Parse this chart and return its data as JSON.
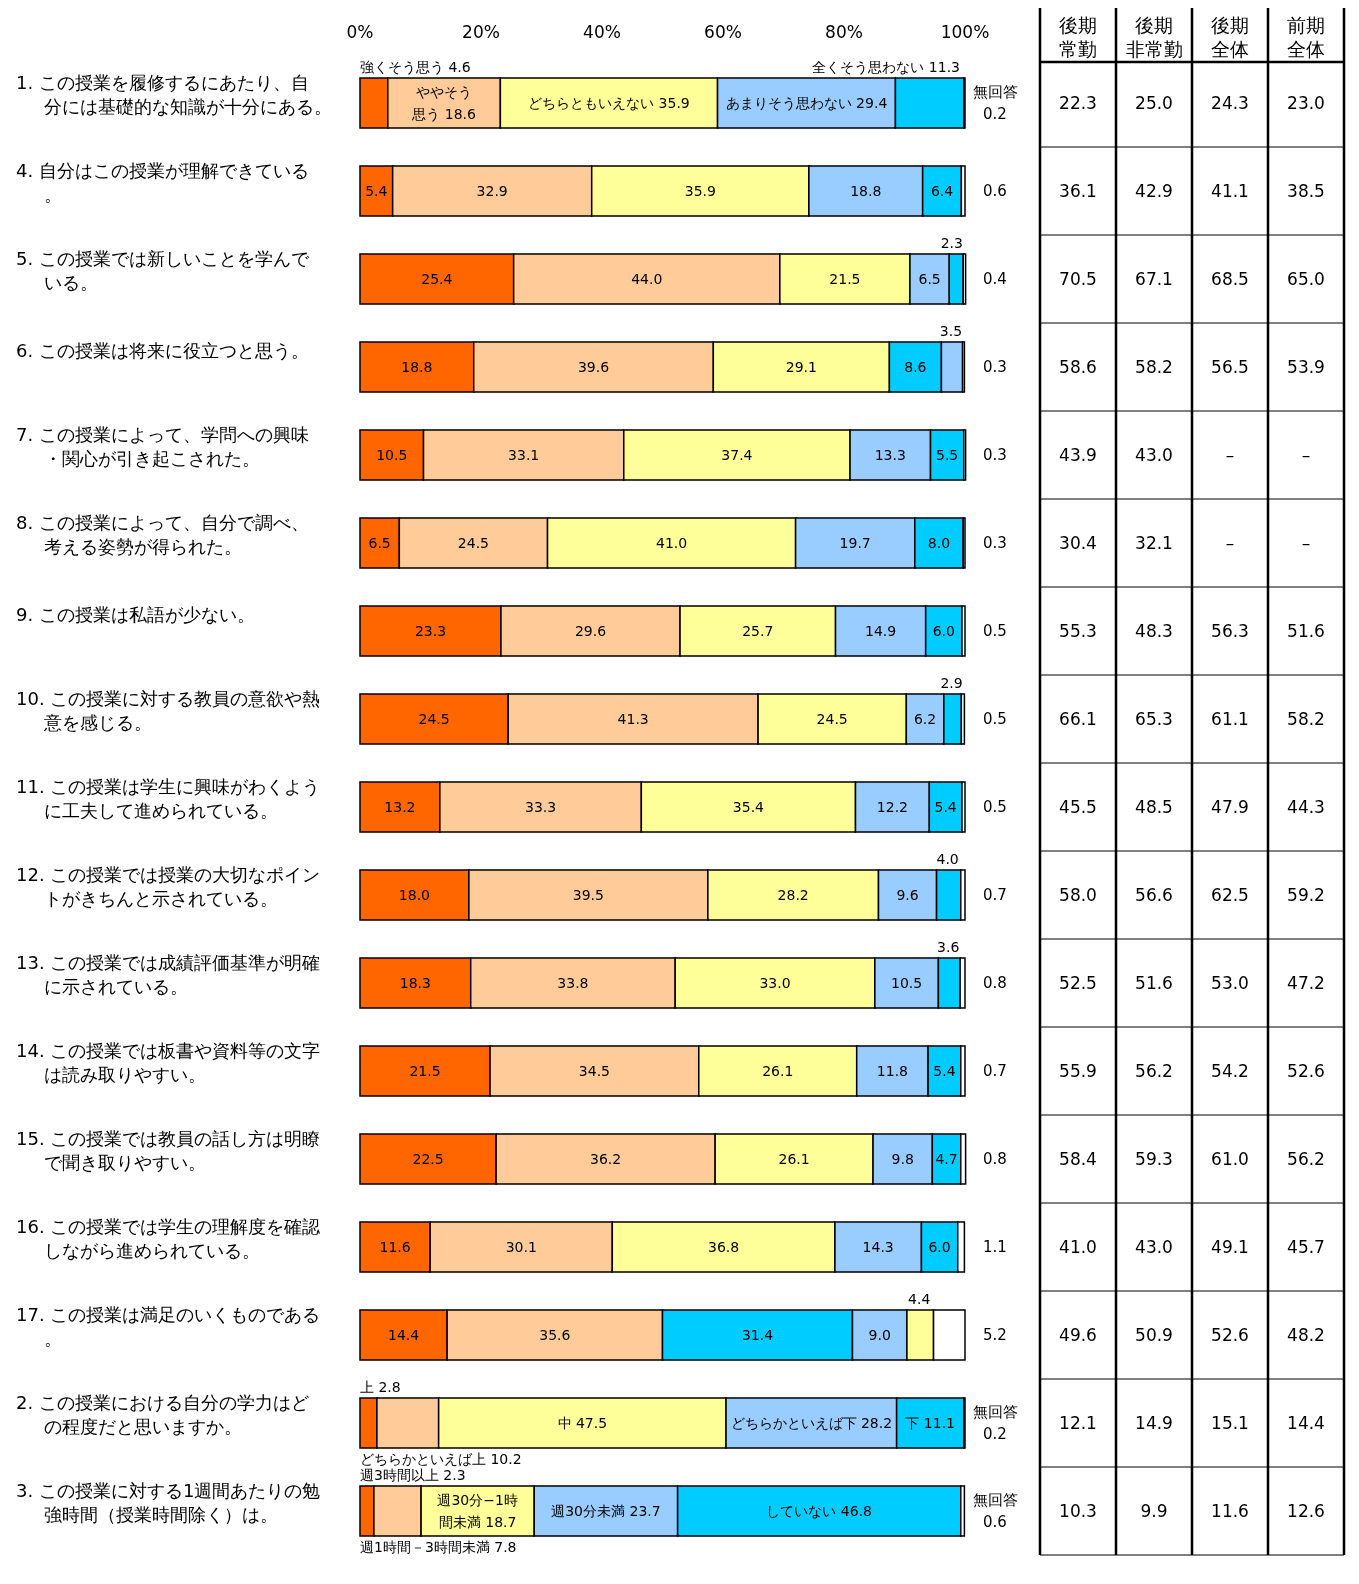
{
  "chart_data": [
    {
      "type": "bar",
      "orientation": "horizontal",
      "stacked": true,
      "xlim": [
        0,
        100
      ],
      "xticks": [
        {
          "value": 0,
          "label": "0%"
        },
        {
          "value": 20,
          "label": "20%"
        },
        {
          "value": 40,
          "label": "40%"
        },
        {
          "value": 60,
          "label": "60%"
        },
        {
          "value": 80,
          "label": "80%"
        },
        {
          "value": 100,
          "label": "100%"
        }
      ],
      "categories": [
        "1. この授業を履修するにあたり、自分には基礎的な知識が十分にある。",
        "4. 自分はこの授業が理解できている。",
        "5. この授業では新しいことを学んでいる。",
        "6. この授業は将来に役立つと思う。",
        "7. この授業によって、学問への興味・関心が引き起こされた。",
        "8. この授業によって、自分で調べ、考える姿勢が得られた。",
        "9. この授業は私語が少ない。",
        "10. この授業に対する教員の意欲や熱意を感じる。",
        "11. この授業は学生に興味がわくように工夫して進められている。",
        "12. この授業では授業の大切なポイントがきちんと示されている。",
        "13. この授業では成績評価基準が明確に示されている。",
        "14. この授業では板書や資料等の文字は読み取りやすい。",
        "15. この授業では教員の話し方は明瞭で聞き取りやすい。",
        "16. この授業では学生の理解度を確認しながら進められている。",
        "17. この授業は満足のいくものである。",
        "2. この授業における自分の学力はどの程度だと思いますか。",
        "3. この授業に対する1週間あたりの勉強時間（授業時間除く）は。"
      ],
      "series": [
        {
          "colors": [
            "#ff6600",
            "#ff6600",
            "#ff6600",
            "#ff6600",
            "#ff6600",
            "#ff6600",
            "#ff6600",
            "#ff6600",
            "#ff6600",
            "#ff6600",
            "#ff6600",
            "#ff6600",
            "#ff6600",
            "#ff6600",
            "#ff6600",
            "#ff6600",
            "#ff6600"
          ],
          "values": [
            4.6,
            5.4,
            25.4,
            18.8,
            10.5,
            6.5,
            23.3,
            24.5,
            13.2,
            18.0,
            18.3,
            21.5,
            22.5,
            11.6,
            14.4,
            2.8,
            2.3
          ],
          "value_labels": [
            "強くそう思う 4.6",
            "5.4",
            "25.4",
            "18.8",
            "10.5",
            "6.5",
            "23.3",
            "24.5",
            "13.2",
            "18.0",
            "18.3",
            "21.5",
            "22.5",
            "11.6",
            "14.4",
            "上 2.8",
            "週3時間以上 2.3"
          ]
        },
        {
          "colors": [
            "#ffcc99",
            "#ffcc99",
            "#ffcc99",
            "#ffcc99",
            "#ffcc99",
            "#ffcc99",
            "#ffcc99",
            "#ffcc99",
            "#ffcc99",
            "#ffcc99",
            "#ffcc99",
            "#ffcc99",
            "#ffcc99",
            "#ffcc99",
            "#ffcc99",
            "#ffcc99",
            "#ffcc99"
          ],
          "values": [
            18.6,
            32.9,
            44.0,
            39.6,
            33.1,
            24.5,
            29.6,
            41.3,
            33.3,
            39.5,
            33.8,
            34.5,
            36.2,
            30.1,
            35.6,
            10.2,
            7.8
          ],
          "value_labels": [
            "ややそう思う 18.6",
            "32.9",
            "44.0",
            "39.6",
            "33.1",
            "24.5",
            "29.6",
            "41.3",
            "33.3",
            "39.5",
            "33.8",
            "34.5",
            "36.2",
            "30.1",
            "35.6",
            "どちらかといえば上 10.2",
            "週1時間－3時間未満 7.8"
          ]
        },
        {
          "colors": [
            "#ffff99",
            "#ffff99",
            "#ffff99",
            "#ffff99",
            "#ffff99",
            "#ffff99",
            "#ffff99",
            "#ffff99",
            "#ffff99",
            "#ffff99",
            "#ffff99",
            "#ffff99",
            "#ffff99",
            "#ffff99",
            "#00ccff",
            "#ffff99",
            "#ffff99"
          ],
          "values": [
            35.9,
            35.9,
            21.5,
            29.1,
            37.4,
            41.0,
            25.7,
            24.5,
            35.4,
            28.2,
            33.0,
            26.1,
            26.1,
            36.8,
            31.4,
            47.5,
            18.7
          ],
          "value_labels": [
            "どちらともいえない 35.9",
            "35.9",
            "21.5",
            "29.1",
            "37.4",
            "41.0",
            "25.7",
            "24.5",
            "35.4",
            "28.2",
            "33.0",
            "26.1",
            "26.1",
            "36.8",
            "31.4",
            "中 47.5",
            "週30分−1時間未満 18.7"
          ]
        },
        {
          "colors": [
            "#99ccff",
            "#99ccff",
            "#99ccff",
            "#00ccff",
            "#99ccff",
            "#99ccff",
            "#99ccff",
            "#99ccff",
            "#99ccff",
            "#99ccff",
            "#99ccff",
            "#99ccff",
            "#99ccff",
            "#99ccff",
            "#99ccff",
            "#99ccff",
            "#99ccff"
          ],
          "values": [
            29.4,
            18.8,
            6.5,
            8.6,
            13.3,
            19.7,
            14.9,
            6.2,
            12.2,
            9.6,
            10.5,
            11.8,
            9.8,
            14.3,
            9.0,
            28.2,
            23.7
          ],
          "value_labels": [
            "あまりそう思わない 29.4",
            "18.8",
            "6.5",
            "8.6",
            "13.3",
            "19.7",
            "14.9",
            "6.2",
            "12.2",
            "9.6",
            "10.5",
            "11.8",
            "9.8",
            "14.3",
            "9.0",
            "どちらかといえば下 28.2",
            "週30分未満 23.7"
          ]
        },
        {
          "colors": [
            "#00ccff",
            "#00ccff",
            "#00ccff",
            "#99ccff",
            "#00ccff",
            "#00ccff",
            "#00ccff",
            "#00ccff",
            "#00ccff",
            "#00ccff",
            "#00ccff",
            "#00ccff",
            "#00ccff",
            "#00ccff",
            "#ffff99",
            "#00ccff",
            "#00ccff"
          ],
          "values": [
            11.3,
            6.4,
            2.3,
            3.5,
            5.5,
            8.0,
            6.0,
            2.9,
            5.4,
            4.0,
            3.6,
            5.4,
            4.7,
            6.0,
            4.4,
            11.1,
            46.8
          ],
          "value_labels": [
            "全くそう思わない 11.3",
            "6.4",
            "2.3",
            "3.5",
            "5.5",
            "8.0",
            "6.0",
            "2.9",
            "5.4",
            "4.0",
            "3.6",
            "5.4",
            "4.7",
            "6.0",
            "4.4",
            "下 11.1",
            "していない 46.8"
          ]
        },
        {
          "colors": [
            "#ffffff",
            "#ffffff",
            "#ffffff",
            "#ffffff",
            "#ffffff",
            "#ffffff",
            "#ffffff",
            "#ffffff",
            "#ffffff",
            "#ffffff",
            "#ffffff",
            "#ffffff",
            "#ffffff",
            "#ffffff",
            "#ffffff",
            "#ffffff",
            "#ffffff"
          ],
          "values": [
            0.2,
            0.6,
            0.4,
            0.3,
            0.3,
            0.3,
            0.5,
            0.5,
            0.5,
            0.7,
            0.8,
            0.7,
            0.8,
            1.1,
            5.2,
            0.2,
            0.6
          ],
          "value_labels": [
            "無回答 0.2",
            "0.6",
            "0.4",
            "0.3",
            "0.3",
            "0.3",
            "0.5",
            "0.5",
            "0.5",
            "0.7",
            "0.8",
            "0.7",
            "0.8",
            "1.1",
            "5.2",
            "無回答 0.2",
            "無回答 0.6"
          ]
        }
      ]
    },
    {
      "type": "other",
      "categories": [
        "後期常勤",
        "後期非常勤",
        "後期全体",
        "前期全体"
      ],
      "annotations": [
        "22.3",
        "25.0",
        "24.3",
        "23.0",
        "36.1",
        "42.9",
        "41.1",
        "38.5",
        "70.5",
        "67.1",
        "68.5",
        "65.0",
        "58.6",
        "58.2",
        "56.5",
        "53.9",
        "43.9",
        "43.0",
        "–",
        "–",
        "30.4",
        "32.1",
        "–",
        "–",
        "55.3",
        "48.3",
        "56.3",
        "51.6",
        "66.1",
        "65.3",
        "61.1",
        "58.2",
        "45.5",
        "48.5",
        "47.9",
        "44.3",
        "58.0",
        "56.6",
        "62.5",
        "59.2",
        "52.5",
        "51.6",
        "53.0",
        "47.2",
        "55.9",
        "56.2",
        "54.2",
        "52.6",
        "58.4",
        "59.3",
        "61.0",
        "56.2",
        "41.0",
        "43.0",
        "49.1",
        "45.7",
        "49.6",
        "50.9",
        "52.6",
        "48.2",
        "12.1",
        "14.9",
        "15.1",
        "14.4",
        "10.3",
        "9.9",
        "11.6",
        "12.6"
      ]
    }
  ]
}
